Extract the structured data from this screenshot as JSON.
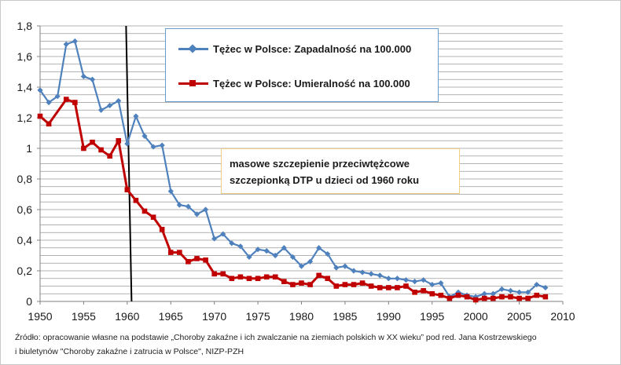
{
  "chart_data": {
    "type": "line",
    "x": [
      1950,
      1951,
      1952,
      1953,
      1954,
      1955,
      1956,
      1957,
      1958,
      1959,
      1960,
      1961,
      1962,
      1963,
      1964,
      1965,
      1966,
      1967,
      1968,
      1969,
      1970,
      1971,
      1972,
      1973,
      1974,
      1975,
      1976,
      1977,
      1978,
      1979,
      1980,
      1981,
      1982,
      1983,
      1984,
      1985,
      1986,
      1987,
      1988,
      1989,
      1990,
      1991,
      1992,
      1993,
      1994,
      1995,
      1996,
      1997,
      1998,
      1999,
      2000,
      2001,
      2002,
      2003,
      2004,
      2005,
      2006,
      2007,
      2008
    ],
    "series": [
      {
        "name": "Tężec w Polsce: Zapadalność na 100.000",
        "color": "#4f81bd",
        "marker": "diamond",
        "values": [
          1.38,
          1.3,
          1.34,
          1.68,
          1.7,
          1.47,
          1.45,
          1.25,
          1.28,
          1.31,
          1.03,
          1.21,
          1.08,
          1.01,
          1.02,
          0.72,
          0.63,
          0.62,
          0.57,
          0.6,
          0.41,
          0.44,
          0.38,
          0.36,
          0.29,
          0.34,
          0.33,
          0.3,
          0.35,
          0.29,
          0.23,
          0.26,
          0.35,
          0.31,
          0.22,
          0.23,
          0.2,
          0.19,
          0.18,
          0.17,
          0.15,
          0.15,
          0.14,
          0.13,
          0.14,
          0.11,
          0.12,
          0.03,
          0.06,
          0.04,
          0.03,
          0.05,
          0.05,
          0.08,
          0.07,
          0.06,
          0.06,
          0.11,
          0.09
        ]
      },
      {
        "name": "Tężec w Polsce: Umieralność na 100.000",
        "color": "#c00000",
        "marker": "square",
        "values": [
          1.21,
          1.16,
          null,
          1.32,
          1.3,
          1.0,
          1.04,
          0.99,
          0.95,
          1.05,
          0.73,
          0.66,
          0.59,
          0.55,
          0.47,
          0.32,
          0.32,
          0.26,
          0.28,
          0.27,
          0.18,
          0.18,
          0.15,
          0.16,
          0.15,
          0.15,
          0.16,
          0.16,
          0.13,
          0.11,
          0.12,
          0.11,
          0.17,
          0.15,
          0.1,
          0.11,
          0.11,
          0.12,
          0.1,
          0.09,
          0.09,
          0.09,
          0.1,
          0.06,
          0.07,
          0.05,
          0.04,
          0.02,
          0.04,
          0.03,
          0.01,
          0.02,
          0.02,
          0.03,
          0.03,
          0.02,
          0.02,
          0.04,
          0.03
        ]
      }
    ],
    "xlim": [
      1950,
      2010
    ],
    "ylim": [
      0,
      1.8
    ],
    "xticks": [
      1950,
      1955,
      1960,
      1965,
      1970,
      1975,
      1980,
      1985,
      1990,
      1995,
      2000,
      2005,
      2010
    ],
    "yticks": [
      0,
      0.2,
      0.4,
      0.6,
      0.8,
      1,
      1.2,
      1.4,
      1.6,
      1.8
    ],
    "ytick_labels": [
      "0",
      "0,2",
      "0,4",
      "0,6",
      "0,8",
      "1",
      "1,2",
      "1,4",
      "1,6",
      "1,8"
    ],
    "grid": true,
    "vertical_marker_year": 1960.5,
    "legend_position": "top-center",
    "annotation": [
      "masowe szczepienie przeciwtężcowe",
      "szczepionką DTP u dzieci od 1960 roku"
    ]
  },
  "source": {
    "line1": "Źródło:  opracowanie własne na podstawie „Choroby zakaźne i ich zwalczanie na ziemiach polskich w XX wieku” pod red. Jana Kostrzewskiego",
    "line2": "i  biuletynów \"Choroby zakaźne i zatrucia w Polsce\", NIZP-PZH"
  }
}
